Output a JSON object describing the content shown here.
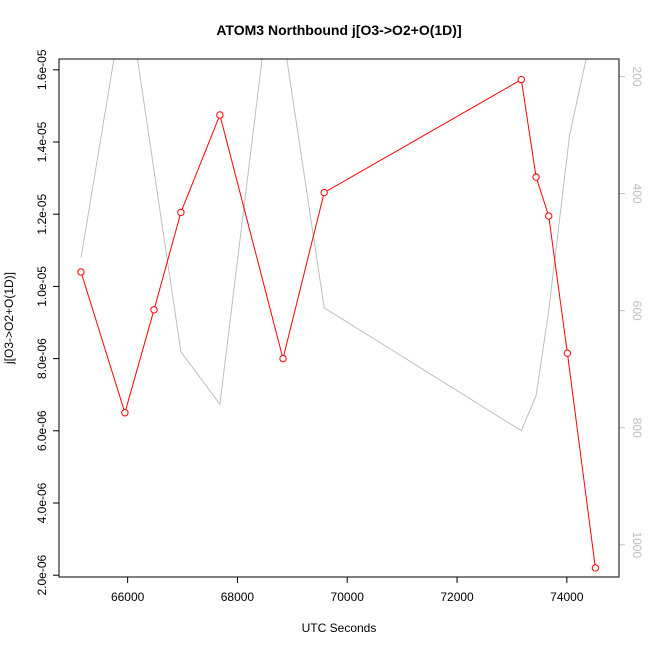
{
  "chart_data": {
    "type": "line",
    "title": "ATOM3 Northbound j[O3->O2+O(1D)]",
    "xlabel": "UTC Seconds",
    "ylabel": "j[O3->O2+O(1D)]",
    "xlim": [
      64750,
      74950
    ],
    "ylim": [
      1.95e-06,
      1.63e-05
    ],
    "x_ticks": [
      66000,
      68000,
      70000,
      72000,
      74000
    ],
    "x_tick_labels": [
      "66000",
      "68000",
      "70000",
      "72000",
      "74000"
    ],
    "y_ticks": [
      2e-06,
      4e-06,
      6e-06,
      8e-06,
      1e-05,
      1.2e-05,
      1.4e-05,
      1.6e-05
    ],
    "y_tick_labels": [
      "2.0e-06",
      "4.0e-06",
      "6.0e-06",
      "8.0e-06",
      "1.0e-05",
      "1.2e-05",
      "1.4e-05",
      "1.6e-05"
    ],
    "y2lim": [
      1055,
      170
    ],
    "y2_ticks": [
      200,
      400,
      600,
      800,
      1000
    ],
    "y2_tick_labels": [
      "200",
      "400",
      "600",
      "800",
      "1000"
    ],
    "series": [
      {
        "axis": "left",
        "color": "#ff0000",
        "marker": "open-circle",
        "x": [
          65150,
          65950,
          66480,
          66970,
          67680,
          68830,
          69580,
          73170,
          73440,
          73670,
          74010,
          74520
        ],
        "y": [
          1.04e-05,
          6.5e-06,
          9.35e-06,
          1.205e-05,
          1.475e-05,
          8e-06,
          1.26e-05,
          1.573e-05,
          1.303e-05,
          1.195e-05,
          8.15e-06,
          2.2e-06
        ]
      },
      {
        "axis": "right",
        "color": "#bebebe",
        "marker": "none",
        "x": [
          65150,
          65750,
          66180,
          66970,
          67680,
          68450,
          68900,
          69580,
          73170,
          73440,
          73670,
          74050,
          74350
        ],
        "y": [
          510,
          170,
          170,
          670,
          760,
          170,
          170,
          595,
          805,
          745,
          600,
          300,
          170
        ]
      }
    ]
  }
}
